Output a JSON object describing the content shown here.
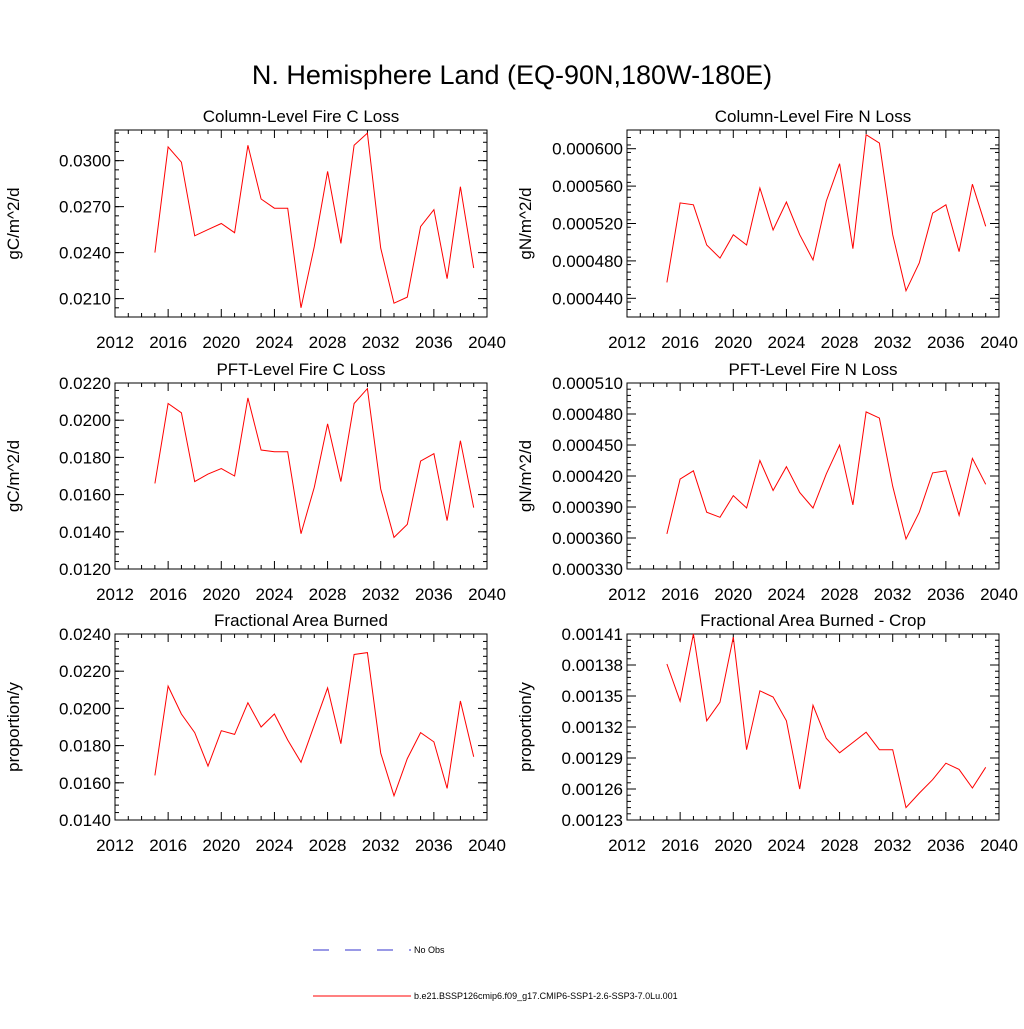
{
  "figure_title": "N. Hemisphere Land (EQ-90N,180W-180E)",
  "legend": {
    "entries": [
      {
        "label": "No Obs",
        "color": "#3333cc",
        "style": "dashed"
      },
      {
        "label": "b.e21.BSSP126cmip6.f09_g17.CMIP6-SSP1-2.6-SSP3-7.0Lu.001",
        "color": "#ff0000",
        "style": "solid"
      }
    ]
  },
  "chart_data": [
    {
      "type": "line",
      "title": "Column-Level Fire C Loss",
      "ylabel": "gC/m^2/d",
      "xlim": [
        2012,
        2040
      ],
      "xticks": [
        "2012",
        "2016",
        "2020",
        "2024",
        "2028",
        "2032",
        "2036",
        "2040"
      ],
      "ylim": [
        0.0198,
        0.032
      ],
      "yticks": [
        0.021,
        0.024,
        0.027,
        0.03
      ],
      "ytick_labels": [
        "0.0210",
        "0.0240",
        "0.0270",
        "0.0300"
      ],
      "yminor_step": 0.0006,
      "x": [
        2015,
        2016,
        2017,
        2018,
        2019,
        2020,
        2021,
        2022,
        2023,
        2024,
        2025,
        2026,
        2027,
        2028,
        2029,
        2030,
        2031,
        2032,
        2033,
        2034,
        2035,
        2036,
        2037,
        2038,
        2039
      ],
      "series": [
        {
          "color": "#ff0000",
          "values": [
            0.024,
            0.0309,
            0.0299,
            0.0251,
            0.0255,
            0.0259,
            0.0253,
            0.031,
            0.0275,
            0.0269,
            0.0269,
            0.0204,
            0.0244,
            0.0293,
            0.0246,
            0.031,
            0.0318,
            0.0243,
            0.0207,
            0.0211,
            0.0257,
            0.0268,
            0.0223,
            0.0283,
            0.023
          ]
        }
      ]
    },
    {
      "type": "line",
      "title": "Column-Level Fire N Loss",
      "ylabel": "gN/m^2/d",
      "xlim": [
        2012,
        2040
      ],
      "xticks": [
        "2012",
        "2016",
        "2020",
        "2024",
        "2028",
        "2032",
        "2036",
        "2040"
      ],
      "ylim": [
        0.00042,
        0.00062
      ],
      "yticks": [
        0.00044,
        0.00048,
        0.00052,
        0.00056,
        0.0006
      ],
      "ytick_labels": [
        "0.000440",
        "0.000480",
        "0.000520",
        "0.000560",
        "0.000600"
      ],
      "yminor_step": 8e-06,
      "x": [
        2015,
        2016,
        2017,
        2018,
        2019,
        2020,
        2021,
        2022,
        2023,
        2024,
        2025,
        2026,
        2027,
        2028,
        2029,
        2030,
        2031,
        2032,
        2033,
        2034,
        2035,
        2036,
        2037,
        2038,
        2039
      ],
      "series": [
        {
          "color": "#ff0000",
          "values": [
            0.000457,
            0.000542,
            0.00054,
            0.000497,
            0.000483,
            0.000508,
            0.000497,
            0.000558,
            0.000513,
            0.000543,
            0.000508,
            0.000481,
            0.000544,
            0.000584,
            0.000493,
            0.000615,
            0.000606,
            0.000508,
            0.000448,
            0.000478,
            0.000531,
            0.00054,
            0.00049,
            0.000562,
            0.000517
          ]
        }
      ]
    },
    {
      "type": "line",
      "title": "PFT-Level Fire C Loss",
      "ylabel": "gC/m^2/d",
      "xlim": [
        2012,
        2040
      ],
      "xticks": [
        "2012",
        "2016",
        "2020",
        "2024",
        "2028",
        "2032",
        "2036",
        "2040"
      ],
      "ylim": [
        0.012,
        0.022
      ],
      "yticks": [
        0.012,
        0.014,
        0.016,
        0.018,
        0.02,
        0.022
      ],
      "ytick_labels": [
        "0.0120",
        "0.0140",
        "0.0160",
        "0.0180",
        "0.0200",
        "0.0220"
      ],
      "yminor_step": 0.0004,
      "x": [
        2015,
        2016,
        2017,
        2018,
        2019,
        2020,
        2021,
        2022,
        2023,
        2024,
        2025,
        2026,
        2027,
        2028,
        2029,
        2030,
        2031,
        2032,
        2033,
        2034,
        2035,
        2036,
        2037,
        2038,
        2039
      ],
      "series": [
        {
          "color": "#ff0000",
          "values": [
            0.0166,
            0.0209,
            0.0204,
            0.0167,
            0.0171,
            0.0174,
            0.017,
            0.0212,
            0.0184,
            0.0183,
            0.0183,
            0.0139,
            0.0164,
            0.0198,
            0.0167,
            0.0209,
            0.0217,
            0.0163,
            0.0137,
            0.0144,
            0.0178,
            0.0182,
            0.0146,
            0.0189,
            0.0153
          ]
        }
      ]
    },
    {
      "type": "line",
      "title": "PFT-Level Fire N Loss",
      "ylabel": "gN/m^2/d",
      "xlim": [
        2012,
        2040
      ],
      "xticks": [
        "2012",
        "2016",
        "2020",
        "2024",
        "2028",
        "2032",
        "2036",
        "2040"
      ],
      "ylim": [
        0.00033,
        0.00051
      ],
      "yticks": [
        0.00033,
        0.00036,
        0.00039,
        0.00042,
        0.00045,
        0.00048,
        0.00051
      ],
      "ytick_labels": [
        "0.000330",
        "0.000360",
        "0.000390",
        "0.000420",
        "0.000450",
        "0.000480",
        "0.000510"
      ],
      "yminor_step": 6e-06,
      "x": [
        2015,
        2016,
        2017,
        2018,
        2019,
        2020,
        2021,
        2022,
        2023,
        2024,
        2025,
        2026,
        2027,
        2028,
        2029,
        2030,
        2031,
        2032,
        2033,
        2034,
        2035,
        2036,
        2037,
        2038,
        2039
      ],
      "series": [
        {
          "color": "#ff0000",
          "values": [
            0.000364,
            0.000417,
            0.000425,
            0.000385,
            0.00038,
            0.000401,
            0.000389,
            0.000435,
            0.000406,
            0.000429,
            0.000404,
            0.000389,
            0.000422,
            0.00045,
            0.000392,
            0.000482,
            0.000476,
            0.00041,
            0.000359,
            0.000385,
            0.000423,
            0.000425,
            0.000382,
            0.000437,
            0.000412
          ]
        }
      ]
    },
    {
      "type": "line",
      "title": "Fractional Area Burned",
      "ylabel": "proportion/y",
      "xlim": [
        2012,
        2040
      ],
      "xticks": [
        "2012",
        "2016",
        "2020",
        "2024",
        "2028",
        "2032",
        "2036",
        "2040"
      ],
      "ylim": [
        0.014,
        0.024
      ],
      "yticks": [
        0.014,
        0.016,
        0.018,
        0.02,
        0.022,
        0.024
      ],
      "ytick_labels": [
        "0.0140",
        "0.0160",
        "0.0180",
        "0.0200",
        "0.0220",
        "0.0240"
      ],
      "yminor_step": 0.0004,
      "x": [
        2015,
        2016,
        2017,
        2018,
        2019,
        2020,
        2021,
        2022,
        2023,
        2024,
        2025,
        2026,
        2027,
        2028,
        2029,
        2030,
        2031,
        2032,
        2033,
        2034,
        2035,
        2036,
        2037,
        2038,
        2039
      ],
      "series": [
        {
          "color": "#ff0000",
          "values": [
            0.0164,
            0.0212,
            0.0197,
            0.0187,
            0.0169,
            0.0188,
            0.0186,
            0.0203,
            0.019,
            0.0197,
            0.0183,
            0.0171,
            0.0191,
            0.0211,
            0.0181,
            0.0229,
            0.023,
            0.0176,
            0.0153,
            0.0173,
            0.0187,
            0.0182,
            0.0157,
            0.0204,
            0.0174
          ]
        }
      ]
    },
    {
      "type": "line",
      "title": "Fractional Area Burned - Crop",
      "ylabel": "proportion/y",
      "xlim": [
        2012,
        2040
      ],
      "xticks": [
        "2012",
        "2016",
        "2020",
        "2024",
        "2028",
        "2032",
        "2036",
        "2040"
      ],
      "ylim": [
        0.00123,
        0.00141
      ],
      "yticks": [
        0.00123,
        0.00126,
        0.00129,
        0.00132,
        0.00135,
        0.00138,
        0.00141
      ],
      "ytick_labels": [
        "0.00123",
        "0.00126",
        "0.00129",
        "0.00132",
        "0.00135",
        "0.00138",
        "0.00141"
      ],
      "yminor_step": 6e-06,
      "x": [
        2015,
        2016,
        2017,
        2018,
        2019,
        2020,
        2021,
        2022,
        2023,
        2024,
        2025,
        2026,
        2027,
        2028,
        2029,
        2030,
        2031,
        2032,
        2033,
        2034,
        2035,
        2036,
        2037,
        2038,
        2039
      ],
      "series": [
        {
          "color": "#ff0000",
          "values": [
            0.001381,
            0.001345,
            0.00141,
            0.001326,
            0.001344,
            0.001407,
            0.001298,
            0.001355,
            0.001349,
            0.001326,
            0.00126,
            0.001341,
            0.001309,
            0.001295,
            0.001305,
            0.001315,
            0.001298,
            0.001298,
            0.001242,
            0.001256,
            0.001269,
            0.001285,
            0.001279,
            0.001261,
            0.001281
          ]
        }
      ]
    }
  ]
}
